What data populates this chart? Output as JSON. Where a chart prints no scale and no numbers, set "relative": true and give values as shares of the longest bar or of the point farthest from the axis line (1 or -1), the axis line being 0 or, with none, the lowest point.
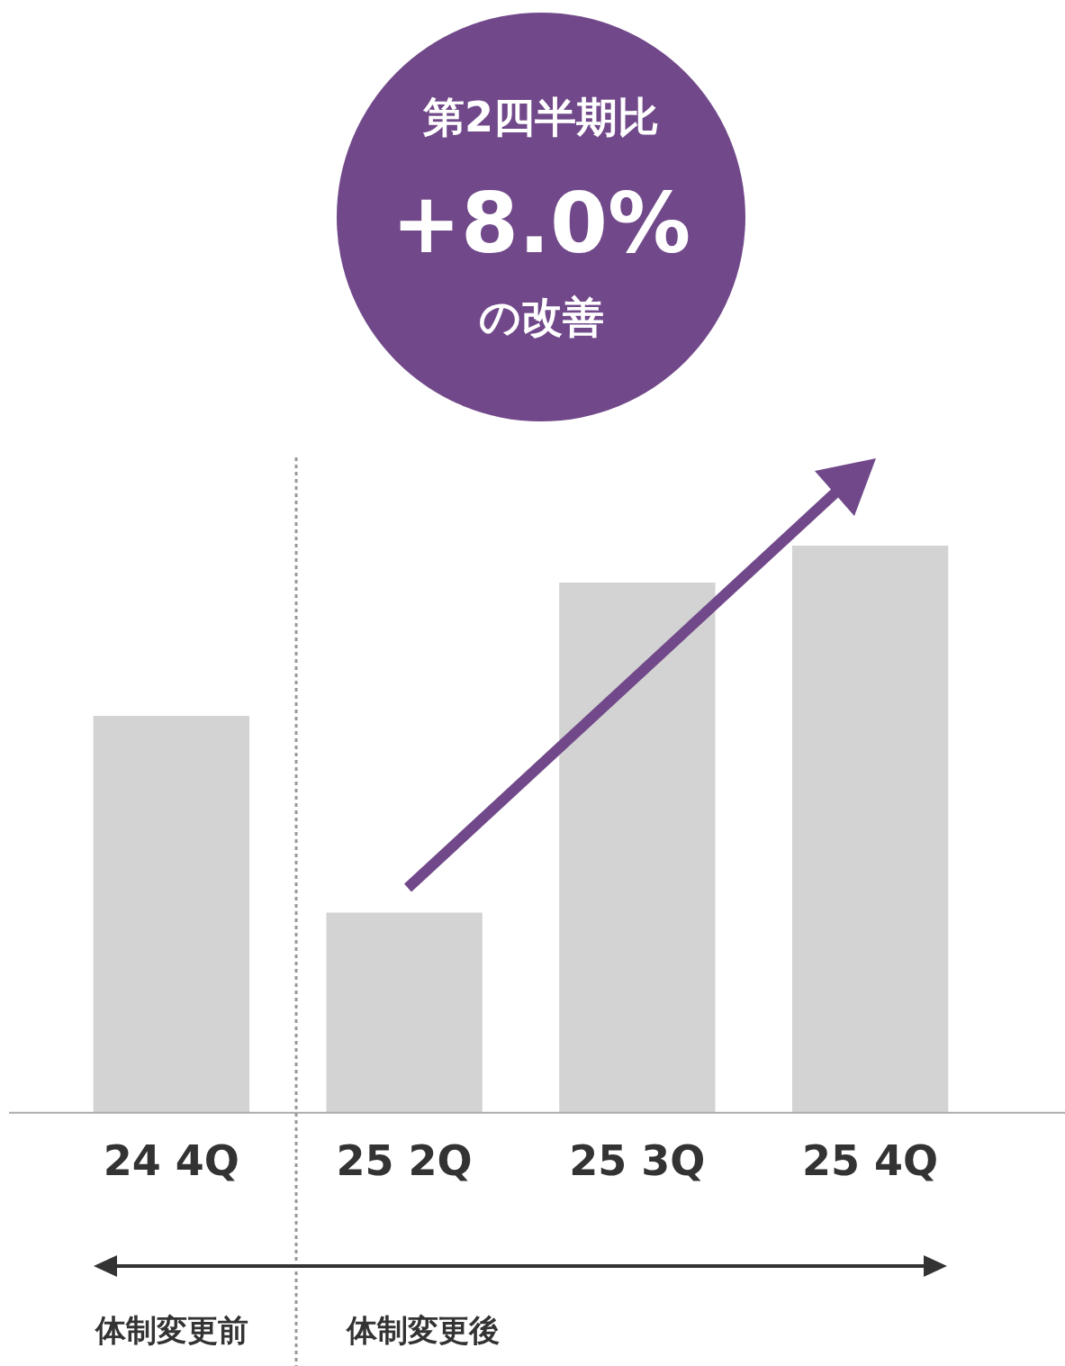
{
  "chart_data": {
    "type": "bar",
    "categories": [
      "24 4Q",
      "25 2Q",
      "25 3Q",
      "25 4Q"
    ],
    "values": [
      0.7,
      0.353,
      0.935,
      1
    ],
    "color": "#d3d3d3",
    "relative": true,
    "grid": false,
    "legend": false,
    "annotations": [
      "第2四半期比",
      "+8.0%",
      "の改善",
      "体制変更前",
      "体制変更後"
    ]
  }
}
